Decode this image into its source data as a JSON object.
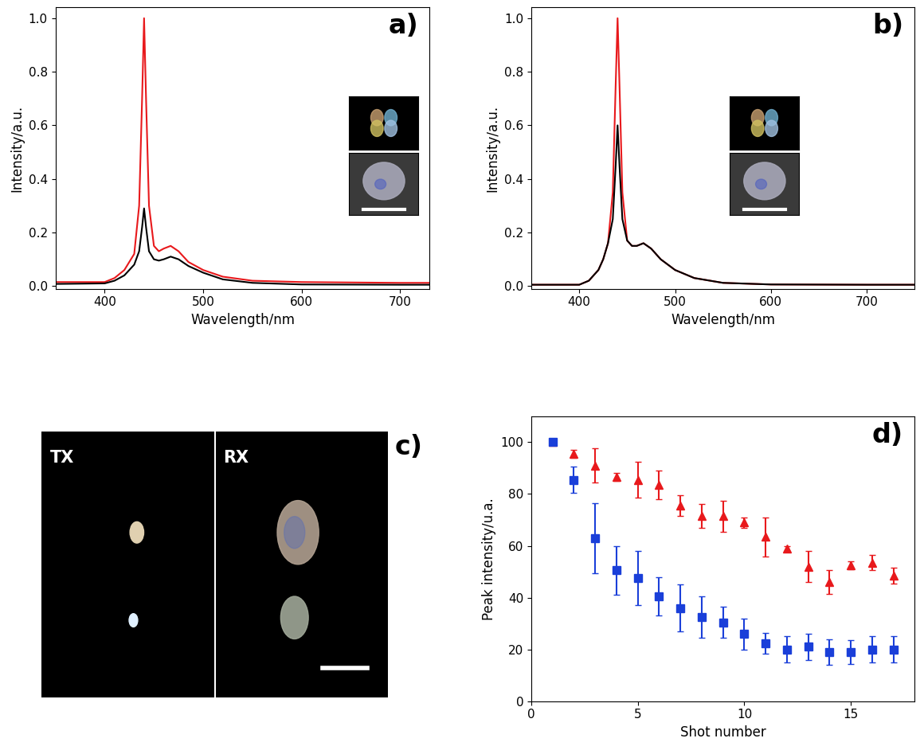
{
  "chart_data": [
    {
      "type": "line",
      "title": "a)",
      "x_label": "Wavelength/nm",
      "y_label": "Intensity/a.u.",
      "x": [
        350,
        400,
        410,
        420,
        430,
        435,
        438,
        440,
        442,
        445,
        450,
        455,
        460,
        467,
        475,
        485,
        500,
        520,
        550,
        600,
        700,
        730
      ],
      "series": [
        {
          "color": "#e8191c",
          "values": [
            0.015,
            0.015,
            0.03,
            0.06,
            0.12,
            0.3,
            0.7,
            1.0,
            0.7,
            0.3,
            0.15,
            0.13,
            0.14,
            0.15,
            0.13,
            0.09,
            0.06,
            0.035,
            0.02,
            0.015,
            0.012,
            0.012
          ]
        },
        {
          "color": "#000000",
          "values": [
            0.008,
            0.01,
            0.02,
            0.04,
            0.08,
            0.13,
            0.22,
            0.29,
            0.22,
            0.13,
            0.1,
            0.095,
            0.1,
            0.11,
            0.1,
            0.075,
            0.05,
            0.025,
            0.012,
            0.006,
            0.005,
            0.005
          ]
        }
      ],
      "xlim": [
        350,
        730
      ],
      "xticks": [
        400,
        500,
        600,
        700
      ],
      "ylim": [
        -0.01,
        1.04
      ],
      "yticks": [
        {
          "value": 0,
          "label": "0.0"
        },
        0.2,
        0.4,
        0.6,
        0.8,
        {
          "value": 1,
          "label": "1.0"
        }
      ]
    },
    {
      "type": "line",
      "title": "b)",
      "x_label": "Wavelength/nm",
      "y_label": "Intensity/a.u.",
      "x": [
        350,
        400,
        410,
        420,
        425,
        430,
        435,
        438,
        440,
        442,
        445,
        450,
        455,
        460,
        467,
        475,
        485,
        500,
        520,
        550,
        600,
        700,
        750
      ],
      "series": [
        {
          "color": "#e8191c",
          "values": [
            0.005,
            0.005,
            0.02,
            0.06,
            0.1,
            0.16,
            0.35,
            0.75,
            1.0,
            0.75,
            0.35,
            0.17,
            0.15,
            0.15,
            0.16,
            0.14,
            0.1,
            0.06,
            0.03,
            0.012,
            0.006,
            0.005,
            0.005
          ]
        },
        {
          "color": "#000000",
          "values": [
            0.005,
            0.005,
            0.02,
            0.06,
            0.1,
            0.16,
            0.25,
            0.45,
            0.6,
            0.45,
            0.25,
            0.17,
            0.15,
            0.15,
            0.16,
            0.14,
            0.1,
            0.06,
            0.03,
            0.012,
            0.006,
            0.005,
            0.005
          ]
        }
      ],
      "xlim": [
        350,
        750
      ],
      "xticks": [
        400,
        500,
        600,
        700
      ],
      "ylim": [
        -0.01,
        1.04
      ],
      "yticks": [
        {
          "value": 0,
          "label": "0.0"
        },
        0.2,
        0.4,
        0.6,
        0.8,
        {
          "value": 1,
          "label": "1.0"
        }
      ]
    },
    {
      "type": "image",
      "title": "c)",
      "panels": [
        "TX",
        "RX"
      ]
    },
    {
      "type": "scatter",
      "title": "d)",
      "x_label": "Shot number",
      "y_label": "Peak intensity/u.a.",
      "x": [
        1,
        2,
        3,
        4,
        5,
        6,
        7,
        8,
        9,
        10,
        11,
        12,
        13,
        14,
        15,
        16,
        17
      ],
      "series": [
        {
          "color": "#e8191c",
          "marker": "triangle",
          "values": [
            100,
            95.5,
            91,
            86.5,
            85.5,
            83.5,
            75.5,
            71.5,
            71.5,
            69,
            63.5,
            59,
            52,
            46,
            52.5,
            53.5,
            48.5
          ],
          "errors": [
            0,
            1.5,
            6.5,
            1.5,
            7,
            5.5,
            4,
            4.5,
            6,
            2,
            7.5,
            1,
            6,
            4.5,
            1.5,
            3,
            3
          ]
        },
        {
          "color": "#1a3fd9",
          "marker": "square",
          "values": [
            100,
            85.5,
            63,
            50.5,
            47.5,
            40.5,
            36,
            32.5,
            30.5,
            26,
            22.5,
            20,
            21,
            19,
            19,
            20,
            20
          ],
          "errors": [
            0,
            5,
            13.5,
            9.5,
            10.5,
            7.5,
            9,
            8,
            6,
            6,
            4,
            5,
            5,
            5,
            4.5,
            5,
            5
          ]
        }
      ],
      "xlim": [
        0,
        18
      ],
      "xticks": [
        0,
        5,
        10,
        15
      ],
      "ylim": [
        0,
        110
      ],
      "yticks": [
        0,
        20,
        40,
        60,
        80,
        100
      ]
    }
  ]
}
